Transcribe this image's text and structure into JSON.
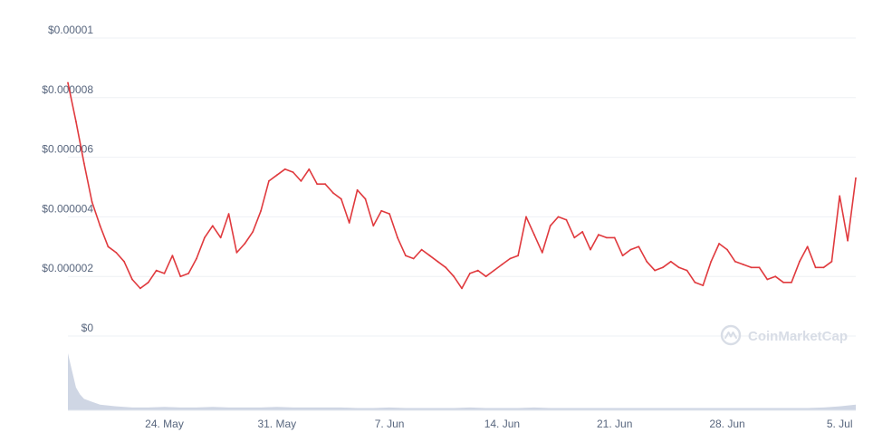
{
  "watermark": "CoinMarketCap",
  "colors": {
    "price_line": "#e03a3e",
    "volume_fill": "#cfd6e4",
    "grid": "#eef0f4",
    "axis_text": "#58667e",
    "watermark": "#d8dde6"
  },
  "chart_data": [
    {
      "type": "line",
      "title": "",
      "xlabel": "",
      "ylabel": "",
      "ylim": [
        0,
        1e-05
      ],
      "xlim": [
        "2021-05-18",
        "2021-07-06"
      ],
      "grid": true,
      "y_ticks": [
        {
          "value": 0,
          "label": "$0"
        },
        {
          "value": 2e-06,
          "label": "$0.000002"
        },
        {
          "value": 4e-06,
          "label": "$0.000004"
        },
        {
          "value": 6e-06,
          "label": "$0.000006"
        },
        {
          "value": 8e-06,
          "label": "$0.000008"
        },
        {
          "value": 1e-05,
          "label": "$0.00001"
        }
      ],
      "x_ticks": [
        {
          "value": "2021-05-24",
          "label": "24. May"
        },
        {
          "value": "2021-05-31",
          "label": "31. May"
        },
        {
          "value": "2021-06-07",
          "label": "7. Jun"
        },
        {
          "value": "2021-06-14",
          "label": "14. Jun"
        },
        {
          "value": "2021-06-21",
          "label": "21. Jun"
        },
        {
          "value": "2021-06-28",
          "label": "28. Jun"
        },
        {
          "value": "2021-07-05",
          "label": "5. Jul"
        }
      ],
      "series": [
        {
          "x": [
            "2021-05-18",
            "2021-05-18T12:00",
            "2021-05-19",
            "2021-05-19T12:00",
            "2021-05-20",
            "2021-05-20T12:00",
            "2021-05-21",
            "2021-05-21T12:00",
            "2021-05-22",
            "2021-05-22T12:00",
            "2021-05-23",
            "2021-05-23T12:00",
            "2021-05-24",
            "2021-05-24T12:00",
            "2021-05-25",
            "2021-05-25T12:00",
            "2021-05-26",
            "2021-05-26T12:00",
            "2021-05-27",
            "2021-05-27T12:00",
            "2021-05-28",
            "2021-05-28T12:00",
            "2021-05-29",
            "2021-05-29T12:00",
            "2021-05-30",
            "2021-05-30T12:00",
            "2021-05-31",
            "2021-05-31T12:00",
            "2021-06-01",
            "2021-06-01T12:00",
            "2021-06-02",
            "2021-06-02T12:00",
            "2021-06-03",
            "2021-06-03T12:00",
            "2021-06-04",
            "2021-06-04T12:00",
            "2021-06-05",
            "2021-06-05T12:00",
            "2021-06-06",
            "2021-06-06T12:00",
            "2021-06-07",
            "2021-06-07T12:00",
            "2021-06-08",
            "2021-06-08T12:00",
            "2021-06-09",
            "2021-06-09T12:00",
            "2021-06-10",
            "2021-06-10T12:00",
            "2021-06-11",
            "2021-06-11T12:00",
            "2021-06-12",
            "2021-06-12T12:00",
            "2021-06-13",
            "2021-06-13T12:00",
            "2021-06-14",
            "2021-06-14T12:00",
            "2021-06-15",
            "2021-06-15T12:00",
            "2021-06-16",
            "2021-06-16T12:00",
            "2021-06-17",
            "2021-06-17T12:00",
            "2021-06-18",
            "2021-06-18T12:00",
            "2021-06-19",
            "2021-06-19T12:00",
            "2021-06-20",
            "2021-06-20T12:00",
            "2021-06-21",
            "2021-06-21T12:00",
            "2021-06-22",
            "2021-06-22T12:00",
            "2021-06-23",
            "2021-06-23T12:00",
            "2021-06-24",
            "2021-06-24T12:00",
            "2021-06-25",
            "2021-06-25T12:00",
            "2021-06-26",
            "2021-06-26T12:00",
            "2021-06-27",
            "2021-06-27T12:00",
            "2021-06-28",
            "2021-06-28T12:00",
            "2021-06-29",
            "2021-06-29T12:00",
            "2021-06-30",
            "2021-06-30T12:00",
            "2021-07-01",
            "2021-07-01T12:00",
            "2021-07-02",
            "2021-07-02T12:00",
            "2021-07-03",
            "2021-07-03T12:00",
            "2021-07-04",
            "2021-07-04T12:00",
            "2021-07-05",
            "2021-07-05T12:00",
            "2021-07-06"
          ],
          "values": [
            8.5e-06,
            7.2e-06,
            5.8e-06,
            4.5e-06,
            3.7e-06,
            3e-06,
            2.8e-06,
            2.5e-06,
            1.9e-06,
            1.6e-06,
            1.8e-06,
            2.2e-06,
            2.1e-06,
            2.7e-06,
            2e-06,
            2.1e-06,
            2.6e-06,
            3.3e-06,
            3.7e-06,
            3.3e-06,
            4.1e-06,
            2.8e-06,
            3.1e-06,
            3.5e-06,
            4.2e-06,
            5.2e-06,
            5.4e-06,
            5.6e-06,
            5.5e-06,
            5.2e-06,
            5.6e-06,
            5.1e-06,
            5.1e-06,
            4.8e-06,
            4.6e-06,
            3.8e-06,
            4.9e-06,
            4.6e-06,
            3.7e-06,
            4.2e-06,
            4.1e-06,
            3.3e-06,
            2.7e-06,
            2.6e-06,
            2.9e-06,
            2.7e-06,
            2.5e-06,
            2.3e-06,
            2e-06,
            1.6e-06,
            2.1e-06,
            2.2e-06,
            2e-06,
            2.2e-06,
            2.4e-06,
            2.6e-06,
            2.7e-06,
            4e-06,
            3.4e-06,
            2.8e-06,
            3.7e-06,
            4e-06,
            3.9e-06,
            3.3e-06,
            3.5e-06,
            2.9e-06,
            3.4e-06,
            3.3e-06,
            3.3e-06,
            2.7e-06,
            2.9e-06,
            3e-06,
            2.5e-06,
            2.2e-06,
            2.3e-06,
            2.5e-06,
            2.3e-06,
            2.2e-06,
            1.8e-06,
            1.7e-06,
            2.5e-06,
            3.1e-06,
            2.9e-06,
            2.5e-06,
            2.4e-06,
            2.3e-06,
            2.3e-06,
            1.9e-06,
            2e-06,
            1.8e-06,
            1.8e-06,
            2.5e-06,
            3e-06,
            2.3e-06,
            2.3e-06,
            2.5e-06,
            4.7e-06,
            3.2e-06,
            5.3e-06
          ]
        }
      ]
    },
    {
      "type": "area",
      "title": "",
      "series": [
        {
          "x": [
            "2021-05-18",
            "2021-05-18T06:00",
            "2021-05-18T12:00",
            "2021-05-18T18:00",
            "2021-05-19",
            "2021-05-19T12:00",
            "2021-05-20",
            "2021-05-21",
            "2021-05-22",
            "2021-05-23",
            "2021-05-24",
            "2021-05-25",
            "2021-05-26",
            "2021-05-27",
            "2021-05-28",
            "2021-05-29",
            "2021-05-30",
            "2021-05-31",
            "2021-06-01",
            "2021-06-02",
            "2021-06-03",
            "2021-06-04",
            "2021-06-05",
            "2021-06-06",
            "2021-06-07",
            "2021-06-08",
            "2021-06-09",
            "2021-06-10",
            "2021-06-11",
            "2021-06-12",
            "2021-06-13",
            "2021-06-14",
            "2021-06-15",
            "2021-06-16",
            "2021-06-17",
            "2021-06-18",
            "2021-06-19",
            "2021-06-20",
            "2021-06-21",
            "2021-06-22",
            "2021-06-23",
            "2021-06-24",
            "2021-06-25",
            "2021-06-26",
            "2021-06-27",
            "2021-06-28",
            "2021-06-29",
            "2021-06-30",
            "2021-07-01",
            "2021-07-02",
            "2021-07-03",
            "2021-07-04",
            "2021-07-05",
            "2021-07-06"
          ],
          "values": [
            1.0,
            0.7,
            0.4,
            0.28,
            0.2,
            0.15,
            0.1,
            0.07,
            0.05,
            0.05,
            0.06,
            0.05,
            0.05,
            0.06,
            0.05,
            0.05,
            0.05,
            0.06,
            0.05,
            0.05,
            0.05,
            0.05,
            0.04,
            0.04,
            0.05,
            0.04,
            0.04,
            0.04,
            0.04,
            0.05,
            0.04,
            0.04,
            0.04,
            0.05,
            0.04,
            0.04,
            0.04,
            0.04,
            0.04,
            0.04,
            0.04,
            0.04,
            0.04,
            0.04,
            0.04,
            0.04,
            0.04,
            0.04,
            0.04,
            0.04,
            0.04,
            0.05,
            0.07,
            0.1
          ]
        }
      ]
    }
  ]
}
